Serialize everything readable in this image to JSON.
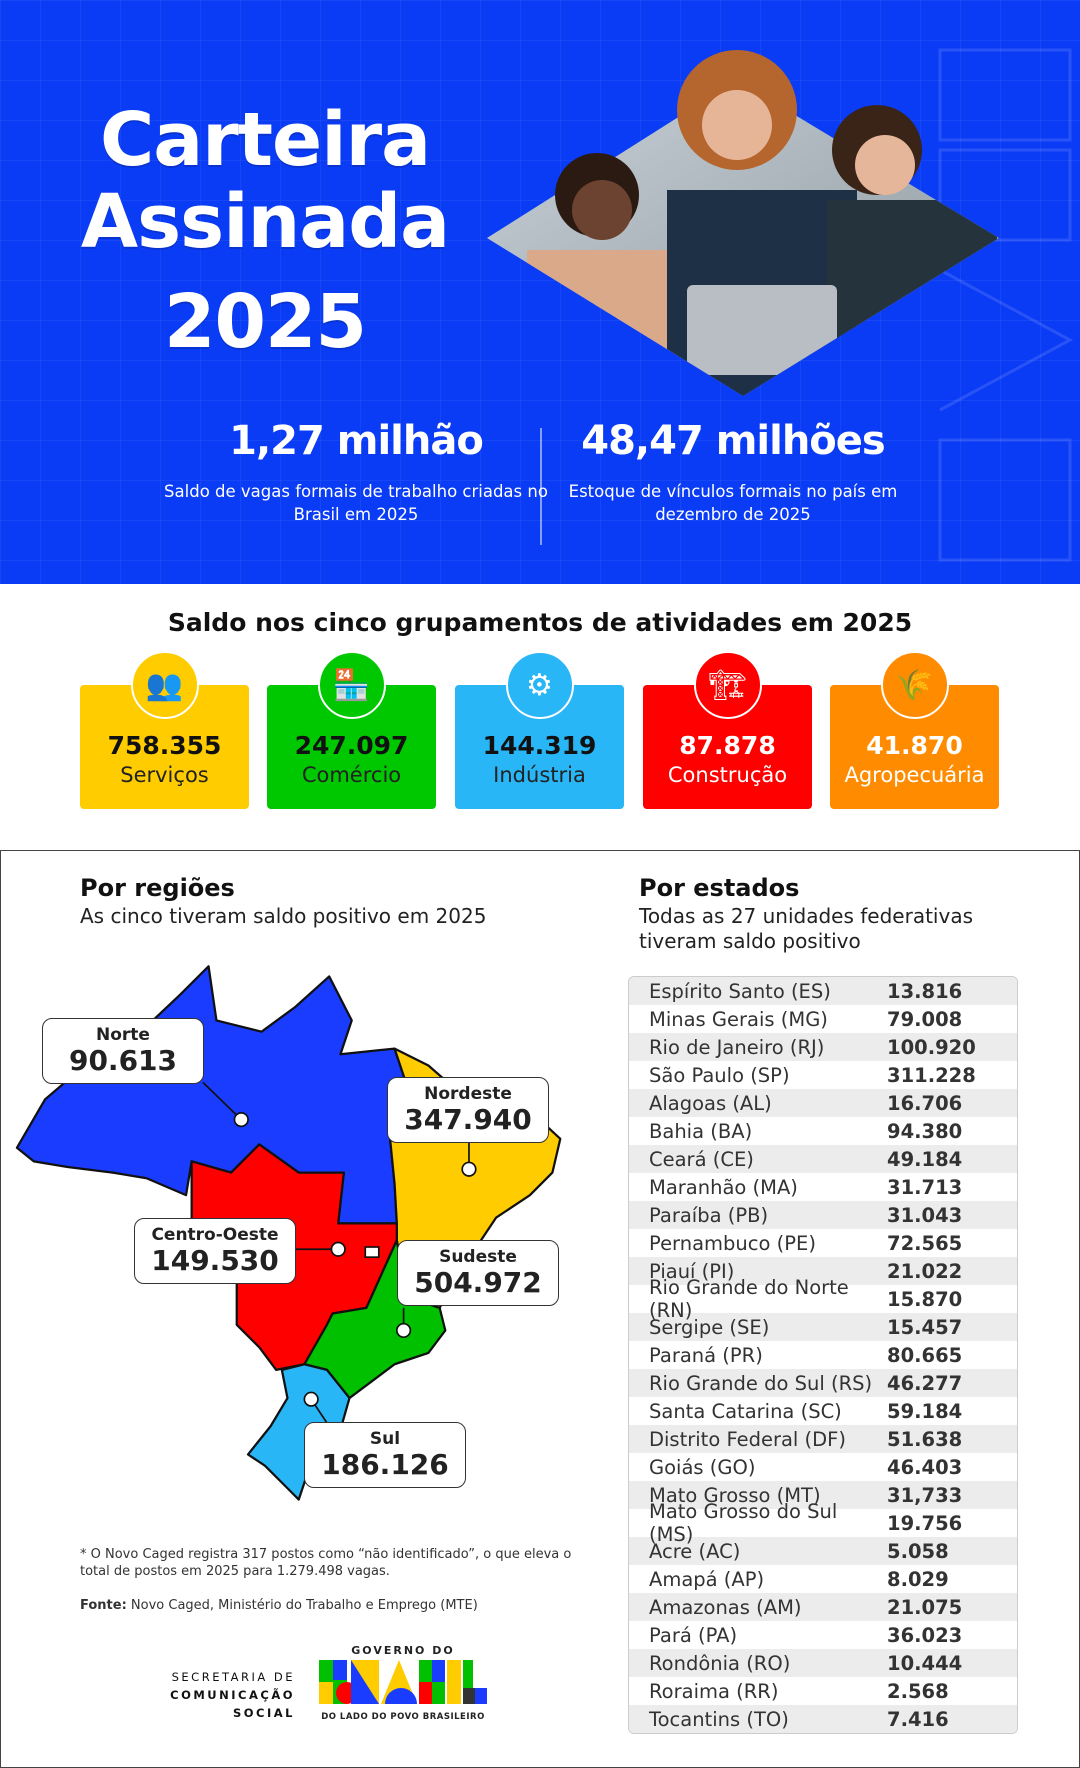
{
  "header": {
    "title_line1": "Carteira",
    "title_line2": "Assinada",
    "title_line3": "2025",
    "stats": [
      {
        "value": "1,27 milhão",
        "desc": "Saldo de vagas formais de trabalho criadas no Brasil em 2025"
      },
      {
        "value": "48,47 milhões",
        "desc": "Estoque de vínculos formais no país em dezembro de 2025"
      }
    ]
  },
  "sectors": {
    "title": "Saldo nos cinco grupamentos de atividades em 2025",
    "items": [
      {
        "value": "758.355",
        "label": "Serviços",
        "color": "#ffcc00",
        "icon": "hand-people-icon"
      },
      {
        "value": "247.097",
        "label": "Comércio",
        "color": "#00c800",
        "icon": "store-icon"
      },
      {
        "value": "144.319",
        "label": "Indústria",
        "color": "#29b6f6",
        "icon": "gear-bolt-icon"
      },
      {
        "value": "87.878",
        "label": "Construção",
        "color": "#ff0000",
        "icon": "crane-icon"
      },
      {
        "value": "41.870",
        "label": "Agropecuária",
        "color": "#ff8c00",
        "icon": "wheat-icon"
      }
    ]
  },
  "regions": {
    "title": "Por regiões",
    "subtitle": "As cinco tiveram saldo positivo em 2025",
    "items": [
      {
        "name": "Norte",
        "value": "90.613",
        "color": "#1a3cff"
      },
      {
        "name": "Nordeste",
        "value": "347.940",
        "color": "#ffcc00"
      },
      {
        "name": "Centro-Oeste",
        "value": "149.530",
        "color": "#ff0000"
      },
      {
        "name": "Sudeste",
        "value": "504.972",
        "color": "#00c000"
      },
      {
        "name": "Sul",
        "value": "186.126",
        "color": "#29b6f6"
      }
    ]
  },
  "states": {
    "title": "Por estados",
    "subtitle": "Todas as 27 unidades federativas tiveram saldo positivo",
    "rows": [
      [
        "Espírito Santo (ES)",
        "13.816"
      ],
      [
        "Minas Gerais (MG)",
        "79.008"
      ],
      [
        "Rio de Janeiro (RJ)",
        "100.920"
      ],
      [
        "São Paulo (SP)",
        "311.228"
      ],
      [
        "Alagoas (AL)",
        "16.706"
      ],
      [
        "Bahia (BA)",
        "94.380"
      ],
      [
        "Ceará (CE)",
        "49.184"
      ],
      [
        "Maranhão (MA)",
        "31.713"
      ],
      [
        "Paraíba (PB)",
        "31.043"
      ],
      [
        "Pernambuco (PE)",
        "72.565"
      ],
      [
        "Piauí (PI)",
        "21.022"
      ],
      [
        "Rio Grande do Norte (RN)",
        "15.870"
      ],
      [
        "Sergipe (SE)",
        "15.457"
      ],
      [
        "Paraná (PR)",
        "80.665"
      ],
      [
        "Rio Grande do Sul (RS)",
        "46.277"
      ],
      [
        "Santa Catarina (SC)",
        "59.184"
      ],
      [
        "Distrito Federal (DF)",
        "51.638"
      ],
      [
        "Goiás (GO)",
        "46.403"
      ],
      [
        "Mato Grosso (MT)",
        "31,733"
      ],
      [
        "Mato Grosso do Sul (MS)",
        "19.756"
      ],
      [
        "Acre (AC)",
        "5.058"
      ],
      [
        "Amapá (AP)",
        "8.029"
      ],
      [
        "Amazonas (AM)",
        "21.075"
      ],
      [
        "Pará (PA)",
        "36.023"
      ],
      [
        "Rondônia (RO)",
        "10.444"
      ],
      [
        "Roraima (RR)",
        "2.568"
      ],
      [
        "Tocantins (TO)",
        "7.416"
      ]
    ]
  },
  "footnote": "* O Novo Caged registra 317 postos como “não identificado”, o que eleva o total de postos em 2025 para 1.279.498 vagas.",
  "source": {
    "label": "Fonte:",
    "text": " Novo Caged, Ministério do Trabalho e Emprego (MTE)"
  },
  "logos": {
    "secom_line1": "SECRETARIA DE",
    "secom_line2": "COMUNICAÇÃO SOCIAL",
    "gov_top": "GOVERNO DO",
    "gov_word": "BRASIL",
    "gov_bottom": "DO LADO DO POVO BRASILEIRO"
  }
}
